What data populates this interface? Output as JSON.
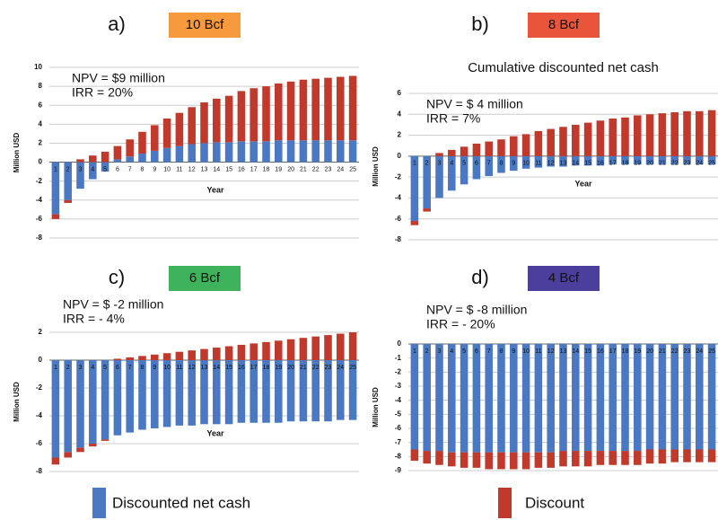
{
  "chart_data": [
    {
      "type": "bar",
      "panel": "a)",
      "badge": "10 Bcf",
      "badge_color": "#f79a3e",
      "annotations": [
        "NPV = $9 million",
        "IRR = 20%"
      ],
      "ylabel": "Million USD",
      "xlabel": "Year",
      "categories": [
        "1",
        "2",
        "3",
        "4",
        "5",
        "6",
        "7",
        "8",
        "9",
        "10",
        "11",
        "12",
        "13",
        "14",
        "15",
        "16",
        "17",
        "18",
        "19",
        "20",
        "21",
        "22",
        "23",
        "24",
        "25"
      ],
      "series": [
        {
          "name": "Discounted net cash",
          "color": "#4a78c2",
          "values": [
            -5.5,
            -4.0,
            -2.8,
            -1.8,
            -1.0,
            0.3,
            0.6,
            0.9,
            1.2,
            1.5,
            1.7,
            1.9,
            2.0,
            2.1,
            2.1,
            2.2,
            2.2,
            2.2,
            2.3,
            2.3,
            2.3,
            2.3,
            2.3,
            2.3,
            2.3
          ]
        },
        {
          "name": "Discount",
          "color": "#c0392b",
          "values": [
            -0.5,
            -0.3,
            0.3,
            0.7,
            1.1,
            1.4,
            1.8,
            2.3,
            2.7,
            3.1,
            3.5,
            3.9,
            4.3,
            4.6,
            4.9,
            5.3,
            5.6,
            5.8,
            6.0,
            6.2,
            6.4,
            6.5,
            6.6,
            6.7,
            6.8
          ]
        }
      ],
      "ylim": [
        -8,
        10
      ],
      "yticks": [
        -8,
        -6,
        -4,
        -2,
        0,
        2,
        4,
        6,
        8,
        10
      ],
      "grid": true
    },
    {
      "type": "bar",
      "panel": "b)",
      "badge": "8 Bcf",
      "badge_color": "#e8553a",
      "subtitle": "Cumulative discounted net cash",
      "annotations": [
        "NPV = $ 4 million",
        "IRR =  7%"
      ],
      "ylabel": "Million USD",
      "xlabel": "Year",
      "categories": [
        "1",
        "2",
        "3",
        "4",
        "5",
        "6",
        "7",
        "8",
        "9",
        "10",
        "11",
        "12",
        "13",
        "14",
        "15",
        "16",
        "17",
        "18",
        "19",
        "20",
        "21",
        "22",
        "23",
        "24",
        "25"
      ],
      "series": [
        {
          "name": "Discounted net cash",
          "color": "#4a78c2",
          "values": [
            -6.2,
            -5.0,
            -4.0,
            -3.3,
            -2.7,
            -2.2,
            -1.9,
            -1.6,
            -1.4,
            -1.2,
            -1.1,
            -1.0,
            -1.0,
            -0.9,
            -0.9,
            -0.9,
            -0.8,
            -0.8,
            -0.8,
            -0.8,
            -0.8,
            -0.8,
            -0.8,
            -0.8,
            -0.8
          ]
        },
        {
          "name": "Discount",
          "color": "#c0392b",
          "values": [
            -0.4,
            -0.3,
            0.3,
            0.6,
            0.9,
            1.2,
            1.4,
            1.6,
            1.9,
            2.1,
            2.4,
            2.6,
            2.8,
            3.0,
            3.2,
            3.4,
            3.6,
            3.7,
            3.9,
            4.0,
            4.1,
            4.2,
            4.3,
            4.3,
            4.4
          ]
        }
      ],
      "ylim": [
        -8,
        6
      ],
      "yticks": [
        -8,
        -6,
        -4,
        -2,
        0,
        2,
        4,
        6
      ],
      "grid": true
    },
    {
      "type": "bar",
      "panel": "c)",
      "badge": "6 Bcf",
      "badge_color": "#3fb35b",
      "annotations": [
        "NPV = $ -2 million",
        "IRR = - 4%"
      ],
      "ylabel": "Million USD",
      "xlabel": "Year",
      "categories": [
        "1",
        "2",
        "3",
        "4",
        "5",
        "6",
        "7",
        "8",
        "9",
        "10",
        "11",
        "12",
        "13",
        "14",
        "15",
        "16",
        "17",
        "18",
        "19",
        "20",
        "21",
        "22",
        "23",
        "24",
        "25"
      ],
      "series": [
        {
          "name": "Discounted net cash",
          "color": "#4a78c2",
          "values": [
            -7.0,
            -6.6,
            -6.3,
            -6.0,
            -5.7,
            -5.4,
            -5.2,
            -5.0,
            -4.9,
            -4.8,
            -4.7,
            -4.7,
            -4.6,
            -4.6,
            -4.6,
            -4.5,
            -4.5,
            -4.5,
            -4.5,
            -4.4,
            -4.4,
            -4.4,
            -4.4,
            -4.3,
            -4.3
          ]
        },
        {
          "name": "Discount",
          "color": "#c0392b",
          "values": [
            -0.5,
            -0.4,
            -0.3,
            -0.2,
            -0.1,
            0.1,
            0.2,
            0.3,
            0.4,
            0.5,
            0.6,
            0.7,
            0.8,
            0.9,
            1.0,
            1.1,
            1.2,
            1.3,
            1.4,
            1.5,
            1.6,
            1.7,
            1.8,
            1.9,
            2.0
          ]
        }
      ],
      "ylim": [
        -8,
        2
      ],
      "yticks": [
        -8,
        -6,
        -4,
        -2,
        0,
        2
      ],
      "grid": true
    },
    {
      "type": "bar",
      "panel": "d)",
      "badge": "4 Bcf",
      "badge_color": "#4b3f9e",
      "annotations": [
        "NPV = $ -8 million",
        "IRR = - 20%"
      ],
      "ylabel": "Million USD",
      "categories": [
        "1",
        "2",
        "3",
        "4",
        "5",
        "6",
        "7",
        "8",
        "9",
        "10",
        "11",
        "12",
        "13",
        "14",
        "15",
        "16",
        "17",
        "18",
        "19",
        "20",
        "21",
        "22",
        "23",
        "24",
        "25"
      ],
      "series": [
        {
          "name": "Discounted net cash",
          "color": "#4a78c2",
          "values": [
            -7.5,
            -7.6,
            -7.6,
            -7.7,
            -7.7,
            -7.7,
            -7.7,
            -7.7,
            -7.7,
            -7.7,
            -7.7,
            -7.7,
            -7.6,
            -7.6,
            -7.6,
            -7.6,
            -7.6,
            -7.6,
            -7.6,
            -7.5,
            -7.5,
            -7.5,
            -7.5,
            -7.5,
            -7.5
          ]
        },
        {
          "name": "Discount",
          "color": "#c0392b",
          "values": [
            -0.8,
            -0.9,
            -1.0,
            -1.0,
            -1.1,
            -1.1,
            -1.2,
            -1.2,
            -1.2,
            -1.2,
            -1.1,
            -1.1,
            -1.1,
            -1.1,
            -1.1,
            -1.0,
            -1.0,
            -1.0,
            -1.0,
            -1.0,
            -1.0,
            -0.9,
            -0.9,
            -0.9,
            -0.9
          ]
        }
      ],
      "ylim": [
        -9,
        0
      ],
      "yticks": [
        -9,
        -8,
        -7,
        -6,
        -5,
        -4,
        -3,
        -2,
        -1,
        0
      ],
      "grid": true
    }
  ]
}
